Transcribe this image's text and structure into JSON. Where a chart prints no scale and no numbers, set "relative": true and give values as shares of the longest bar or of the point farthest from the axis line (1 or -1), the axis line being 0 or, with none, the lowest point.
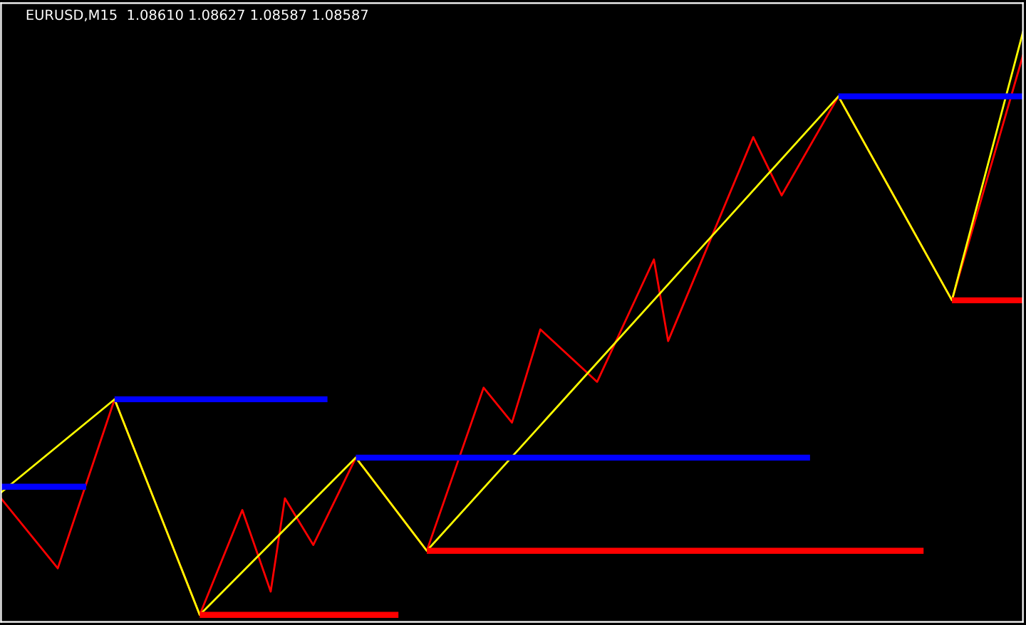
{
  "chart_data": {
    "type": "line",
    "title": "EURUSD,M15  1.08610 1.08627 1.08587 1.08587",
    "relative": true,
    "categories": [
      null,
      null,
      null,
      null,
      null,
      null,
      null,
      null,
      null,
      null,
      null,
      null,
      null,
      null,
      null,
      null,
      null,
      null,
      null,
      null,
      null,
      null,
      null,
      null,
      null,
      null,
      null,
      null,
      null,
      null,
      null,
      null,
      null,
      null,
      null,
      null,
      null,
      null,
      null,
      null,
      null,
      null,
      null,
      null,
      null,
      null,
      null,
      null,
      null,
      null,
      null,
      null,
      null,
      null,
      null,
      null,
      null,
      null,
      null,
      null,
      null,
      null,
      null,
      null,
      null,
      null,
      null,
      null,
      null,
      null,
      null,
      null,
      null
    ],
    "series": [
      {
        "color": "#ff0000",
        "values": [
          0.2,
          null,
          null,
          null,
          0.08,
          null,
          null,
          null,
          0.37,
          null,
          null,
          null,
          null,
          null,
          0.0,
          null,
          null,
          0.18,
          null,
          0.04,
          0.2,
          null,
          0.12,
          null,
          null,
          0.27,
          null,
          null,
          null,
          null,
          0.11,
          null,
          null,
          null,
          0.39,
          null,
          0.33,
          null,
          0.49,
          null,
          null,
          null,
          0.4,
          null,
          null,
          null,
          0.61,
          0.47,
          null,
          null,
          null,
          null,
          null,
          0.82,
          null,
          0.72,
          null,
          null,
          null,
          0.89,
          null,
          null,
          null,
          null,
          null,
          null,
          null,
          0.54,
          null,
          null,
          null,
          null,
          0.96
        ]
      },
      {
        "color": "#ffff00",
        "values": [
          0.21,
          null,
          null,
          null,
          null,
          null,
          null,
          null,
          0.37,
          null,
          null,
          null,
          null,
          null,
          0.0,
          null,
          null,
          null,
          null,
          null,
          null,
          null,
          null,
          null,
          null,
          0.27,
          null,
          null,
          null,
          null,
          0.11,
          null,
          null,
          null,
          null,
          null,
          null,
          null,
          null,
          null,
          null,
          null,
          null,
          null,
          null,
          null,
          null,
          null,
          null,
          null,
          null,
          null,
          null,
          null,
          null,
          null,
          null,
          null,
          null,
          0.89,
          null,
          null,
          null,
          null,
          null,
          null,
          null,
          0.54,
          null,
          null,
          null,
          null,
          1.0
        ]
      },
      {
        "type": "step",
        "color": "#0000ff",
        "values": [
          0.22,
          0.22,
          0.22,
          0.22,
          0.22,
          0.22,
          0.22,
          null,
          0.37,
          0.37,
          0.37,
          0.37,
          0.37,
          0.37,
          0.37,
          0.37,
          0.37,
          0.37,
          0.37,
          0.37,
          0.37,
          0.37,
          0.37,
          0.37,
          null,
          0.27,
          0.27,
          0.27,
          0.27,
          0.27,
          0.27,
          0.27,
          0.27,
          0.27,
          0.27,
          0.27,
          0.27,
          0.27,
          0.27,
          0.27,
          0.27,
          0.27,
          0.27,
          0.27,
          0.27,
          0.27,
          0.27,
          0.27,
          0.27,
          0.27,
          0.27,
          0.27,
          0.27,
          0.27,
          0.27,
          0.27,
          0.27,
          0.27,
          null,
          0.89,
          0.89,
          0.89,
          0.89,
          0.89,
          0.89,
          0.89,
          0.89,
          0.89,
          0.89,
          0.89,
          0.89,
          0.89,
          0.89
        ]
      },
      {
        "type": "step",
        "color": "#ff0000",
        "values": [
          null,
          null,
          null,
          null,
          null,
          null,
          null,
          null,
          null,
          null,
          null,
          null,
          null,
          null,
          0.0,
          0.0,
          0.0,
          0.0,
          0.0,
          0.0,
          0.0,
          0.0,
          0.0,
          0.0,
          0.0,
          0.0,
          0.0,
          0.0,
          0.0,
          null,
          0.11,
          0.11,
          0.11,
          0.11,
          0.11,
          0.11,
          0.11,
          0.11,
          0.11,
          0.11,
          0.11,
          0.11,
          0.11,
          0.11,
          0.11,
          0.11,
          0.11,
          0.11,
          0.11,
          0.11,
          0.11,
          0.11,
          0.11,
          0.11,
          0.11,
          0.11,
          0.11,
          0.11,
          0.11,
          0.11,
          0.11,
          0.11,
          0.11,
          0.11,
          0.11,
          0.11,
          null,
          0.54,
          0.54,
          0.54,
          0.54,
          0.54,
          0.54
        ]
      }
    ]
  }
}
